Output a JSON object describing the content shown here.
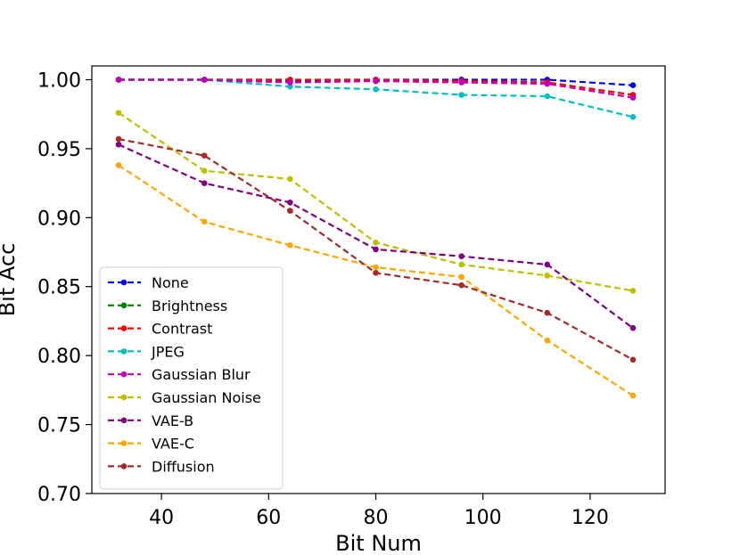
{
  "chart_data": {
    "type": "line",
    "title": "",
    "xlabel": "Bit Num",
    "ylabel": "Bit Acc",
    "xlim": [
      27,
      134
    ],
    "ylim": [
      0.7,
      1.01
    ],
    "xticks": [
      40,
      60,
      80,
      100,
      120
    ],
    "yticks": [
      0.7,
      0.75,
      0.8,
      0.85,
      0.9,
      0.95,
      1.0
    ],
    "xtick_labels": [
      "40",
      "60",
      "80",
      "100",
      "120"
    ],
    "ytick_labels": [
      "0.70",
      "0.75",
      "0.80",
      "0.85",
      "0.90",
      "0.95",
      "1.00"
    ],
    "grid": false,
    "legend_position": "lower-left",
    "x": [
      32,
      48,
      64,
      80,
      96,
      112,
      128
    ],
    "series": [
      {
        "name": "None",
        "color": "#0000ff",
        "values": [
          1.0,
          1.0,
          0.999,
          1.0,
          1.0,
          1.0,
          0.996
        ]
      },
      {
        "name": "Brightness",
        "color": "#008000",
        "values": [
          1.0,
          1.0,
          1.0,
          0.999,
          0.999,
          0.998,
          0.989
        ]
      },
      {
        "name": "Contrast",
        "color": "#ff0000",
        "values": [
          1.0,
          1.0,
          1.0,
          1.0,
          0.999,
          0.998,
          0.989
        ]
      },
      {
        "name": "JPEG",
        "color": "#00bfbf",
        "values": [
          1.0,
          1.0,
          0.995,
          0.993,
          0.989,
          0.988,
          0.973
        ]
      },
      {
        "name": "Gaussian Blur",
        "color": "#bf00bf",
        "values": [
          1.0,
          1.0,
          0.998,
          0.999,
          0.998,
          0.997,
          0.987
        ]
      },
      {
        "name": "Gaussian Noise",
        "color": "#bfbf00",
        "values": [
          0.976,
          0.934,
          0.928,
          0.882,
          0.866,
          0.858,
          0.847
        ]
      },
      {
        "name": "VAE-B",
        "color": "#800080",
        "values": [
          0.953,
          0.925,
          0.911,
          0.877,
          0.872,
          0.866,
          0.82
        ]
      },
      {
        "name": "VAE-C",
        "color": "#ffa500",
        "values": [
          0.938,
          0.897,
          0.88,
          0.864,
          0.857,
          0.811,
          0.771
        ]
      },
      {
        "name": "Diffusion",
        "color": "#a52a2a",
        "values": [
          0.957,
          0.945,
          0.905,
          0.86,
          0.851,
          0.831,
          0.797
        ]
      }
    ]
  }
}
